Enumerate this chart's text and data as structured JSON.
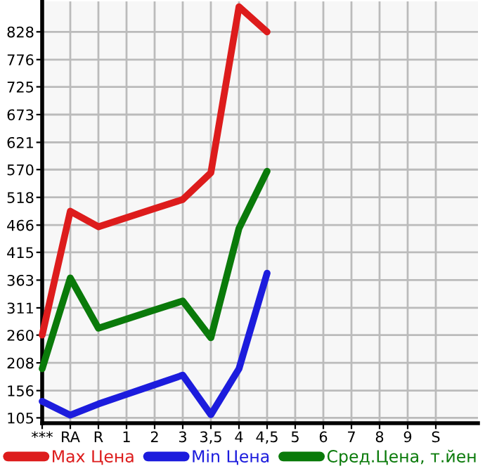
{
  "chart_data": {
    "type": "line",
    "categories": [
      "***",
      "RA",
      "R",
      "1",
      "2",
      "3",
      "3,5",
      "4",
      "4,5",
      "5",
      "6",
      "7",
      "8",
      "9",
      "S"
    ],
    "series": [
      {
        "name": "Max Цена",
        "color": "#dd1c1c",
        "values": [
          260,
          492,
          463,
          480,
          497,
          514,
          564,
          875,
          828,
          null,
          null,
          null,
          null,
          null,
          null
        ]
      },
      {
        "name": "Min Цена",
        "color": "#1c1cdd",
        "values": [
          136,
          110,
          131,
          149,
          167,
          185,
          111,
          197,
          376,
          null,
          null,
          null,
          null,
          null,
          null
        ]
      },
      {
        "name": "Сред.Цена, т.йен",
        "color": "#0a7a0a",
        "values": [
          197,
          367,
          273,
          290,
          307,
          324,
          255,
          460,
          567,
          null,
          null,
          null,
          null,
          null,
          null
        ]
      }
    ],
    "ylim": [
      95,
      885
    ],
    "yticks": [
      105,
      156,
      208,
      260,
      311,
      363,
      415,
      466,
      518,
      570,
      621,
      673,
      725,
      776,
      828
    ],
    "grid": true,
    "legend": "bottom",
    "marker": "none",
    "line_style": "solid"
  }
}
